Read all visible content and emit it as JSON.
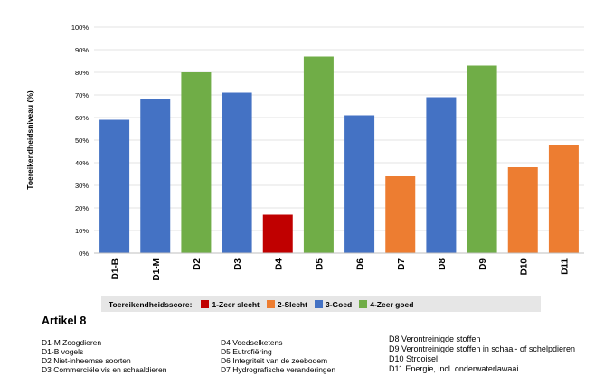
{
  "chart_data": {
    "type": "bar",
    "title": "",
    "ylabel": "Toereikendheidsniveau (%)",
    "xlabel": "",
    "ylim": [
      0,
      100
    ],
    "yticks": [
      "0%",
      "10%",
      "20%",
      "30%",
      "40%",
      "50%",
      "60%",
      "70%",
      "80%",
      "90%",
      "100%"
    ],
    "grid": true,
    "categories": [
      "D1-B",
      "D1-M",
      "D2",
      "D3",
      "D4",
      "D5",
      "D6",
      "D7",
      "D8",
      "D9",
      "D10",
      "D11"
    ],
    "values": [
      59,
      68,
      80,
      71,
      17,
      87,
      61,
      34,
      69,
      83,
      38,
      48
    ],
    "scores": [
      "3-Goed",
      "3-Goed",
      "4-Zeer goed",
      "3-Goed",
      "1-Zeer slecht",
      "4-Zeer goed",
      "3-Goed",
      "2-Slecht",
      "3-Goed",
      "4-Zeer goed",
      "2-Slecht",
      "2-Slecht"
    ],
    "legend": {
      "title": "Toereikendheidsscore:",
      "placement": "bottom",
      "items": [
        {
          "label": "1-Zeer slecht",
          "color": "#c00000"
        },
        {
          "label": "2-Slecht",
          "color": "#ed7d31"
        },
        {
          "label": "3-Goed",
          "color": "#4472c4"
        },
        {
          "label": "4-Zeer goed",
          "color": "#70ad47"
        }
      ]
    }
  },
  "article": {
    "title": "Artikel 8",
    "col1": [
      "D1-M Zoogdieren",
      "D1-B vogels",
      "D2 Niet-inheemse soorten",
      "D3 Commerciële vis en schaaldieren"
    ],
    "col2": [
      "D4 Voedselketens",
      "D5 Eutrofiëring",
      "D6 Integriteit van de zeebodem",
      "D7 Hydrografische veranderingen"
    ],
    "col3": [
      "D8 Verontreinigde stoffen",
      "D9 Verontreinigde stoffen in schaal- of schelpdieren",
      "D10 Strooisel",
      "D11 Energie, incl. onderwaterlawaai"
    ]
  }
}
